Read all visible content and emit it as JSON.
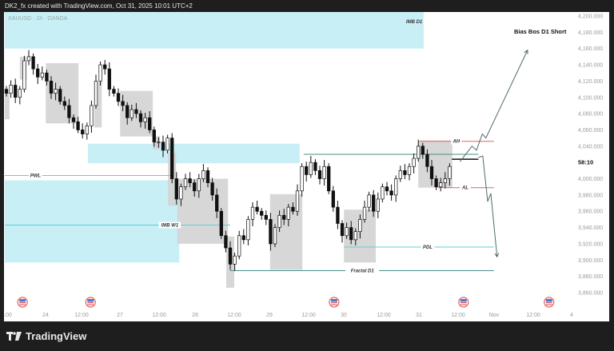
{
  "header": {
    "title": "DK2_fx created with TradingView.com, Oct 31, 2025 10:01 UTC+2"
  },
  "symbol": "XAUUSD · 1h · OANDA",
  "bias_note": "Bias Bos D1 Short",
  "brand": "TradingView",
  "countdown": "58:10",
  "colors": {
    "zone": "#c7eff5",
    "box": "#d3d3d3",
    "line_cyan": "#5ccfdc",
    "line_teal": "#4a8f8a",
    "line_red": "#e06666",
    "arrow": "#4f6b6b",
    "pink": "#e9a6d3"
  },
  "chart_data": {
    "type": "candlestick",
    "ylim": [
      3850,
      4205
    ],
    "y_ticks": [
      "4,200.000",
      "4,180.000",
      "4,160.000",
      "4,140.000",
      "4,120.000",
      "4,100.000",
      "4,080.000",
      "4,060.000",
      "4,040.000",
      "4,020.000",
      "4,000.000",
      "3,980.000",
      "3,960.000",
      "3,940.000",
      "3,920.000",
      "3,900.000",
      "3,880.000",
      "3,860.000"
    ],
    "y_tick_values": [
      4200,
      4180,
      4160,
      4140,
      4120,
      4100,
      4080,
      4060,
      4040,
      4020,
      4000,
      3980,
      3960,
      3940,
      3920,
      3900,
      3880,
      3860
    ],
    "x_ticks": [
      ":00",
      "24",
      "12:00",
      "27",
      "12:00",
      "28",
      "12:00",
      "29",
      "12:00",
      "30",
      "12:00",
      "31",
      "12:00",
      "Nov",
      "12:00",
      "4"
    ],
    "close": [
      4105,
      4115,
      4100,
      4110,
      4145,
      4150,
      4135,
      4125,
      4130,
      4120,
      4105,
      4110,
      4095,
      4090,
      4075,
      4070,
      4060,
      4055,
      4065,
      4090,
      4120,
      4140,
      4135,
      4110,
      4105,
      4095,
      4090,
      4075,
      4085,
      4080,
      4070,
      4075,
      4060,
      4045,
      4045,
      4035,
      4050,
      4000,
      3975,
      3990,
      4000,
      3995,
      3985,
      4000,
      4010,
      3995,
      3980,
      3960,
      3930,
      3915,
      3895,
      3905,
      3930,
      3925,
      3950,
      3965,
      3960,
      3955,
      3950,
      3920,
      3940,
      3955,
      3950,
      3965,
      3960,
      3985,
      4015,
      4005,
      4020,
      4010,
      4000,
      4015,
      3985,
      3965,
      3945,
      3930,
      3940,
      3925,
      3935,
      3950,
      3965,
      3980,
      3960,
      3975,
      3990,
      3985,
      3980,
      4000,
      4010,
      4005,
      4015,
      4025,
      4040,
      4030,
      4015,
      4000,
      3990,
      3995,
      4000,
      4015
    ],
    "zones": [
      {
        "label": "IMB D1",
        "from_bar": -0.4,
        "to_bar": 93.2,
        "top": 4205,
        "bottom": 4160
      },
      {
        "label": "",
        "from_bar": 18.2,
        "to_bar": 65.5,
        "top": 4043,
        "bottom": 4019
      },
      {
        "label": "",
        "from_bar": -0.4,
        "to_bar": 38.6,
        "top": 3998,
        "bottom": 3897
      }
    ],
    "levels": [
      {
        "label": "PWL",
        "price": 4004,
        "from_bar": -0.4,
        "to_bar": 37,
        "color": "cyan",
        "label_bar": 6.5
      },
      {
        "label": "IMB W1",
        "price": 3943,
        "from_bar": -0.4,
        "to_bar": 50,
        "color": "cyan",
        "label_bar": 36.5
      },
      {
        "label": "",
        "price": 4030,
        "from_bar": 66.4,
        "to_bar": 105.4,
        "color": "teal"
      },
      {
        "label": "AH",
        "price": 4046,
        "from_bar": 92.3,
        "to_bar": 108.9,
        "color": "red",
        "label_bar": 100.5
      },
      {
        "label": "AL",
        "price": 3989,
        "from_bar": 96.4,
        "to_bar": 108.9,
        "color": "red",
        "label_bar": 102.5
      },
      {
        "label": "",
        "price": 4024,
        "from_bar": 99.5,
        "to_bar": 105.4,
        "color": "black"
      },
      {
        "label": "PDL",
        "price": 3916,
        "from_bar": 75.4,
        "to_bar": 108.9,
        "color": "cyan",
        "label_bar": 94.1
      },
      {
        "label": "Fractal D1",
        "price": 3887,
        "from_bar": 50,
        "to_bar": 108.9,
        "color": "teal",
        "label_bar": 79.5
      }
    ],
    "boxes": [
      {
        "from_bar": -0.4,
        "to_bar": 0.7,
        "top": 4106,
        "bottom": 4073
      },
      {
        "from_bar": 3,
        "to_bar": 4.5,
        "top": 4150,
        "bottom": 4122
      },
      {
        "from_bar": 8.8,
        "to_bar": 16.1,
        "top": 4142,
        "bottom": 4068
      },
      {
        "from_bar": 19.6,
        "to_bar": 21.3,
        "top": 4119,
        "bottom": 4063
      },
      {
        "from_bar": 25.4,
        "to_bar": 32.7,
        "top": 4108,
        "bottom": 4052
      },
      {
        "from_bar": 32.7,
        "to_bar": 34.3,
        "top": 4052,
        "bottom": 4036
      },
      {
        "from_bar": 36.1,
        "to_bar": 37.9,
        "top": 4032,
        "bottom": 3967
      },
      {
        "from_bar": 38.2,
        "to_bar": 49.5,
        "top": 4000,
        "bottom": 3920
      },
      {
        "from_bar": 49.1,
        "to_bar": 50.9,
        "top": 3929,
        "bottom": 3866
      },
      {
        "from_bar": 58.9,
        "to_bar": 66.1,
        "top": 3981,
        "bottom": 3888
      },
      {
        "from_bar": 75.4,
        "to_bar": 82.5,
        "top": 3962,
        "bottom": 3897
      },
      {
        "from_bar": 92,
        "to_bar": 99.6,
        "top": 4047,
        "bottom": 3989
      }
    ],
    "arrows": [
      {
        "points": [
          [
            101.3,
            4021
          ],
          [
            104,
            4040
          ],
          [
            105,
            4035
          ],
          [
            106.3,
            4055
          ],
          [
            107.1,
            4050
          ],
          [
            116.4,
            4158
          ]
        ]
      },
      {
        "points": [
          [
            105.4,
            4026
          ],
          [
            106.4,
            4028
          ],
          [
            107.5,
            3972
          ],
          [
            108.2,
            3982
          ],
          [
            109.6,
            3904
          ]
        ]
      }
    ],
    "event_flags_bars": [
      3.6,
      18.8,
      73.2,
      102.1,
      121.2
    ]
  }
}
